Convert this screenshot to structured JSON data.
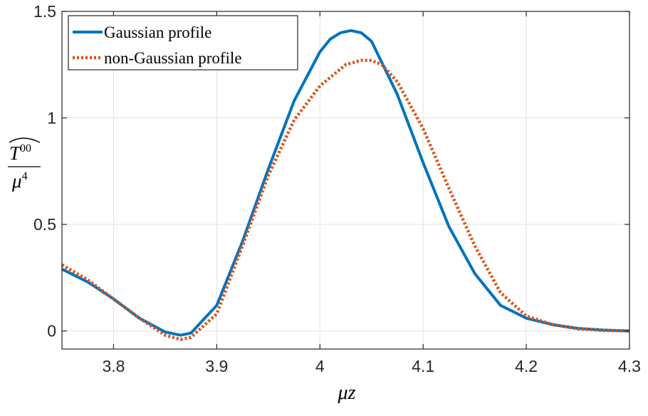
{
  "chart_data": {
    "type": "line",
    "xlabel": "μz",
    "ylabel": {
      "numerator_symbol": "T",
      "numerator_superscript": "00",
      "denominator_symbol": "μ",
      "denominator_superscript": "4"
    },
    "xlim": [
      3.75,
      4.3
    ],
    "ylim": [
      -0.085,
      1.5
    ],
    "xticks": [
      3.8,
      3.9,
      4.0,
      4.1,
      4.2,
      4.3
    ],
    "xtick_labels": [
      "3.8",
      "3.9",
      "4",
      "4.1",
      "4.2",
      "4.3"
    ],
    "yticks": [
      0,
      0.5,
      1,
      1.5
    ],
    "ytick_labels": [
      "0",
      "0.5",
      "1",
      "1.5"
    ],
    "grid": true,
    "legend_position": "top-left",
    "series": [
      {
        "name": "Gaussian profile",
        "color": "#0072BD",
        "style": "solid",
        "x": [
          3.75,
          3.775,
          3.8,
          3.825,
          3.85,
          3.865,
          3.875,
          3.9,
          3.925,
          3.95,
          3.975,
          4.0,
          4.01,
          4.02,
          4.03,
          4.04,
          4.05,
          4.075,
          4.1,
          4.125,
          4.15,
          4.175,
          4.2,
          4.225,
          4.25,
          4.275,
          4.3
        ],
        "y": [
          0.29,
          0.23,
          0.15,
          0.06,
          -0.005,
          -0.02,
          -0.01,
          0.12,
          0.42,
          0.76,
          1.08,
          1.31,
          1.37,
          1.4,
          1.41,
          1.4,
          1.36,
          1.11,
          0.79,
          0.49,
          0.27,
          0.12,
          0.06,
          0.03,
          0.012,
          0.004,
          0.0
        ]
      },
      {
        "name": "non-Gaussian profile",
        "color": "#D95319",
        "style": "dotted",
        "x": [
          3.75,
          3.775,
          3.8,
          3.825,
          3.85,
          3.865,
          3.875,
          3.9,
          3.925,
          3.95,
          3.975,
          4.0,
          4.025,
          4.04,
          4.05,
          4.06,
          4.075,
          4.1,
          4.125,
          4.15,
          4.175,
          4.2,
          4.225,
          4.25,
          4.275,
          4.3
        ],
        "y": [
          0.31,
          0.24,
          0.15,
          0.06,
          -0.02,
          -0.04,
          -0.03,
          0.08,
          0.4,
          0.73,
          0.99,
          1.15,
          1.25,
          1.27,
          1.27,
          1.25,
          1.17,
          0.95,
          0.67,
          0.4,
          0.18,
          0.07,
          0.03,
          0.01,
          0.002,
          0.0
        ]
      }
    ]
  }
}
